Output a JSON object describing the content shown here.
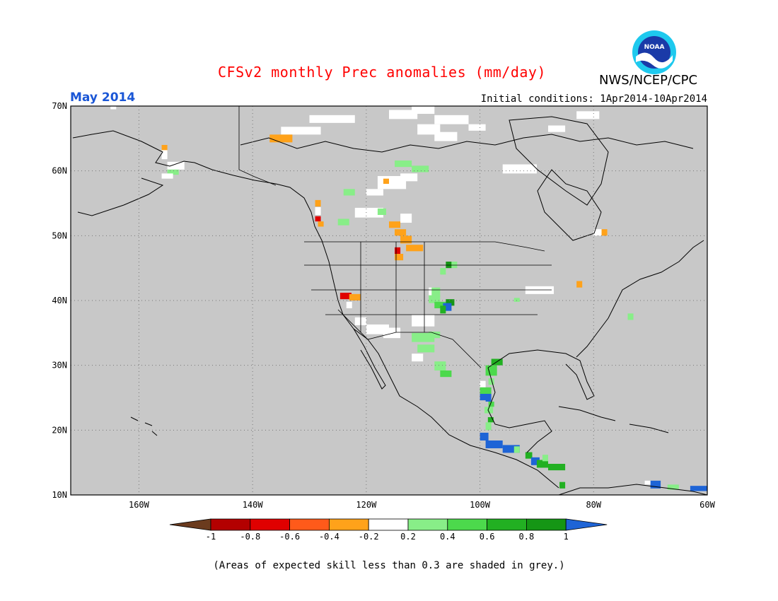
{
  "header": {
    "title": "CFSv2 monthly Prec anomalies (mm/day)",
    "title_color": "#ff0000",
    "organization": "NWS/NCEP/CPC",
    "logo_label": "NOAA",
    "valid_month": "May 2014",
    "month_color": "#1a56d6",
    "initial_conditions": "Initial conditions: 1Apr2014-10Apr2014"
  },
  "map": {
    "lon_range": [
      -172,
      -60
    ],
    "lat_range": [
      10,
      70
    ],
    "background_color": "#c8c8c8",
    "grid": "dotted",
    "lat_labels": [
      "70N",
      "60N",
      "50N",
      "40N",
      "30N",
      "20N",
      "10N"
    ],
    "lon_labels": [
      "160W",
      "140W",
      "120W",
      "100W",
      "80W",
      "60W"
    ]
  },
  "colorbar": {
    "tick_labels": [
      "-1",
      "-0.8",
      "-0.6",
      "-0.4",
      "-0.2",
      "0.2",
      "0.4",
      "0.6",
      "0.8",
      "1"
    ],
    "colors": [
      "#6b3b1e",
      "#b30000",
      "#e00000",
      "#ff5a1a",
      "#ffa21a",
      "#ffffff",
      "#88ee88",
      "#4cd94c",
      "#22b022",
      "#159615",
      "#1e64d6"
    ]
  },
  "footnote": "(Areas of expected skill less than 0.3 are shaded in grey.)"
}
